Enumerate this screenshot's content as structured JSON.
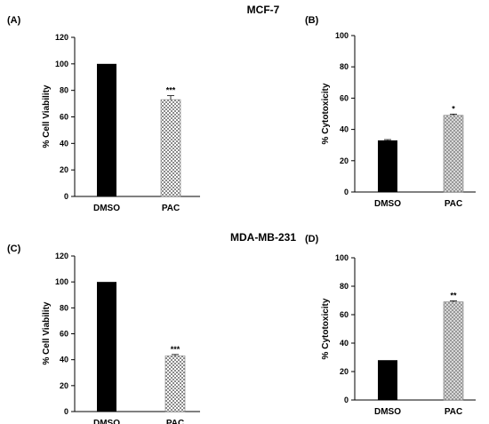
{
  "titles": [
    "MCF-7",
    "MDA-MB-231"
  ],
  "chart_data": [
    {
      "panel": "(A)",
      "type": "bar",
      "categories": [
        "DMSO",
        "PAC"
      ],
      "values": [
        100,
        73
      ],
      "errors": [
        0,
        3
      ],
      "significance": [
        "",
        "***"
      ],
      "ylabel": "% Cell Viability",
      "ylim": [
        0,
        120
      ],
      "yticks": [
        0,
        20,
        40,
        60,
        80,
        100,
        120
      ],
      "bar_colors": [
        "#000000",
        "pattern-checker"
      ],
      "grid": false
    },
    {
      "panel": "(B)",
      "type": "bar",
      "categories": [
        "DMSO",
        "PAC"
      ],
      "values": [
        33,
        49
      ],
      "errors": [
        0.5,
        0.8
      ],
      "significance": [
        "",
        "*"
      ],
      "ylabel": "% Cytotoxicity",
      "ylim": [
        0,
        100
      ],
      "yticks": [
        0,
        20,
        40,
        60,
        80,
        100
      ],
      "bar_colors": [
        "#000000",
        "pattern-dots"
      ],
      "grid": false
    },
    {
      "panel": "(C)",
      "type": "bar",
      "categories": [
        "DMSO",
        "PAC"
      ],
      "values": [
        100,
        43
      ],
      "errors": [
        0,
        1
      ],
      "significance": [
        "",
        "***"
      ],
      "ylabel": "% Cell Viability",
      "ylim": [
        0,
        120
      ],
      "yticks": [
        0,
        20,
        40,
        60,
        80,
        100,
        120
      ],
      "bar_colors": [
        "#000000",
        "pattern-checker"
      ],
      "grid": false
    },
    {
      "panel": "(D)",
      "type": "bar",
      "categories": [
        "DMSO",
        "PAC"
      ],
      "values": [
        28,
        69
      ],
      "errors": [
        0,
        0.7
      ],
      "significance": [
        "",
        "**"
      ],
      "ylabel": "% Cytotoxicity",
      "ylim": [
        0,
        100
      ],
      "yticks": [
        0,
        20,
        40,
        60,
        80,
        100
      ],
      "bar_colors": [
        "#000000",
        "pattern-dots"
      ],
      "grid": false
    }
  ]
}
